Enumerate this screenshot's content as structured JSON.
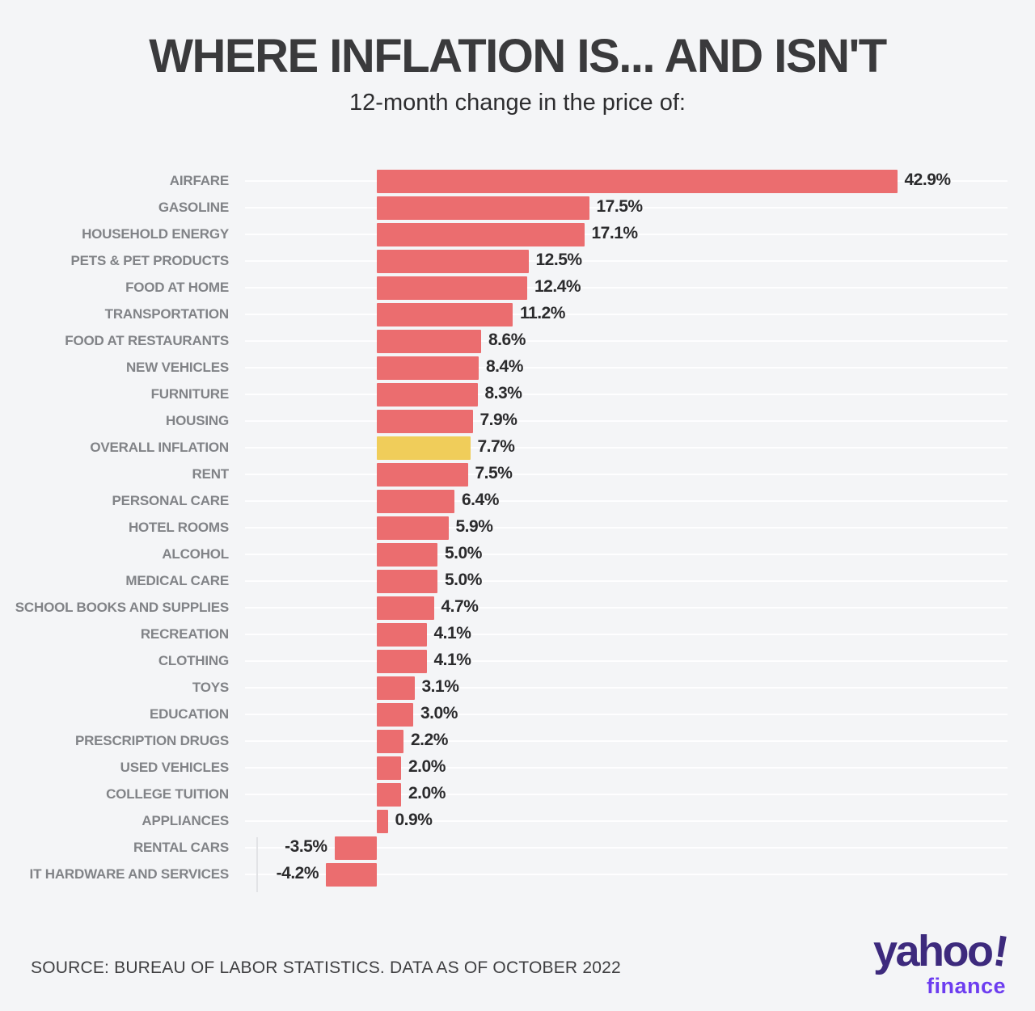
{
  "header": {
    "title": "WHERE INFLATION IS... AND ISN'T",
    "subtitle": "12-month change in the price of:"
  },
  "chart_data": {
    "type": "bar",
    "orientation": "horizontal",
    "unit": "percent",
    "title": "WHERE INFLATION IS... AND ISN'T",
    "subtitle": "12-month change in the price of:",
    "categories": [
      "AIRFARE",
      "GASOLINE",
      "HOUSEHOLD ENERGY",
      "PETS & PET PRODUCTS",
      "FOOD AT HOME",
      "TRANSPORTATION",
      "FOOD AT RESTAURANTS",
      "NEW VEHICLES",
      "FURNITURE",
      "HOUSING",
      "OVERALL INFLATION",
      "RENT",
      "PERSONAL CARE",
      "HOTEL ROOMS",
      "ALCOHOL",
      "MEDICAL CARE",
      "SCHOOL BOOKS AND SUPPLIES",
      "RECREATION",
      "CLOTHING",
      "TOYS",
      "EDUCATION",
      "PRESCRIPTION DRUGS",
      "USED VEHICLES",
      "COLLEGE TUITION",
      "APPLIANCES",
      "RENTAL CARS",
      "IT HARDWARE AND SERVICES"
    ],
    "values": [
      42.9,
      17.5,
      17.1,
      12.5,
      12.4,
      11.2,
      8.6,
      8.4,
      8.3,
      7.9,
      7.7,
      7.5,
      6.4,
      5.9,
      5.0,
      5.0,
      4.7,
      4.1,
      4.1,
      3.1,
      3.0,
      2.2,
      2.0,
      2.0,
      0.9,
      -3.5,
      -4.2
    ],
    "value_labels": [
      "42.9%",
      "17.5%",
      "17.1%",
      "12.5%",
      "12.4%",
      "11.2%",
      "8.6%",
      "8.4%",
      "8.3%",
      "7.9%",
      "7.7%",
      "7.5%",
      "6.4%",
      "5.9%",
      "5.0%",
      "5.0%",
      "4.7%",
      "4.1%",
      "4.1%",
      "3.1%",
      "3.0%",
      "2.2%",
      "2.0%",
      "2.0%",
      "0.9%",
      "-3.5%",
      "-4.2%"
    ],
    "highlight_category": "OVERALL INFLATION",
    "highlight_index": 10,
    "xlim": [
      -10,
      45
    ],
    "grid": "horizontal row lines, faint vertical tick at -10%",
    "legend": "none"
  },
  "colors": {
    "background": "#f4f5f7",
    "bar": "#eb6d6f",
    "highlight_bar": "#f0cd5a",
    "category_label": "#818387",
    "value_label": "#2b2b2d",
    "title": "#3a3a3c",
    "yahoo_purple": "#3d2a7d",
    "finance_purple": "#6d3df0"
  },
  "footer": {
    "source": "SOURCE: BUREAU OF LABOR STATISTICS. DATA AS OF OCTOBER 2022",
    "logo": {
      "yahoo": "yahoo",
      "exclaim": "!",
      "finance": "finance"
    }
  }
}
